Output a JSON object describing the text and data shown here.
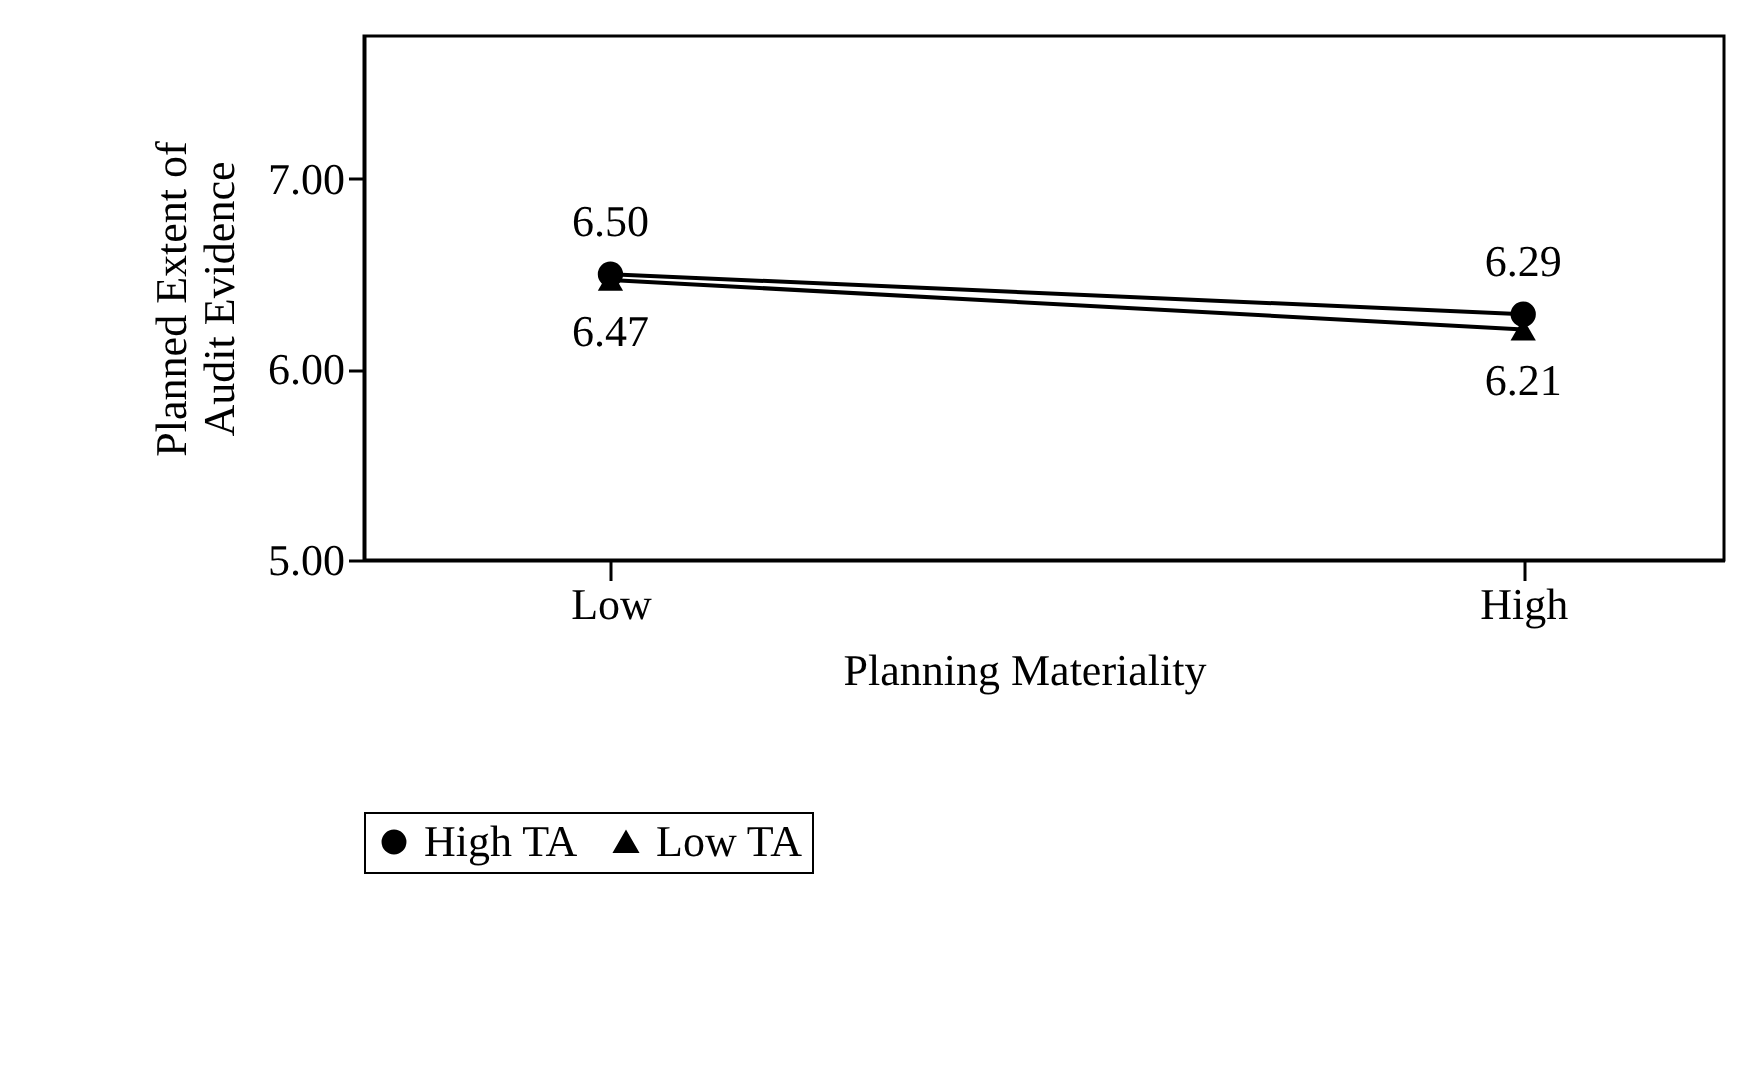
{
  "chart_data": {
    "type": "line",
    "xlabel": "Planning Materiality",
    "ylabel": "Planned Extent of\nAudit Evidence",
    "categories": [
      "Low",
      "High"
    ],
    "series": [
      {
        "name": "High TA",
        "color": "#000000",
        "marker": "circle",
        "values": [
          6.5,
          6.29
        ],
        "value_labels": [
          "6.50",
          "6.29"
        ]
      },
      {
        "name": "Low TA",
        "color": "#000000",
        "marker": "triangle",
        "values": [
          6.47,
          6.21
        ],
        "value_labels": [
          "6.47",
          "6.21"
        ]
      }
    ],
    "ylim": [
      5,
      7.75
    ],
    "yticks": [
      {
        "value": 5,
        "label": "5.00"
      },
      {
        "value": 6,
        "label": "6.00"
      },
      {
        "value": 7,
        "label": "7.00"
      }
    ],
    "grid": false,
    "legend": "bottom",
    "line_style": "solid"
  }
}
